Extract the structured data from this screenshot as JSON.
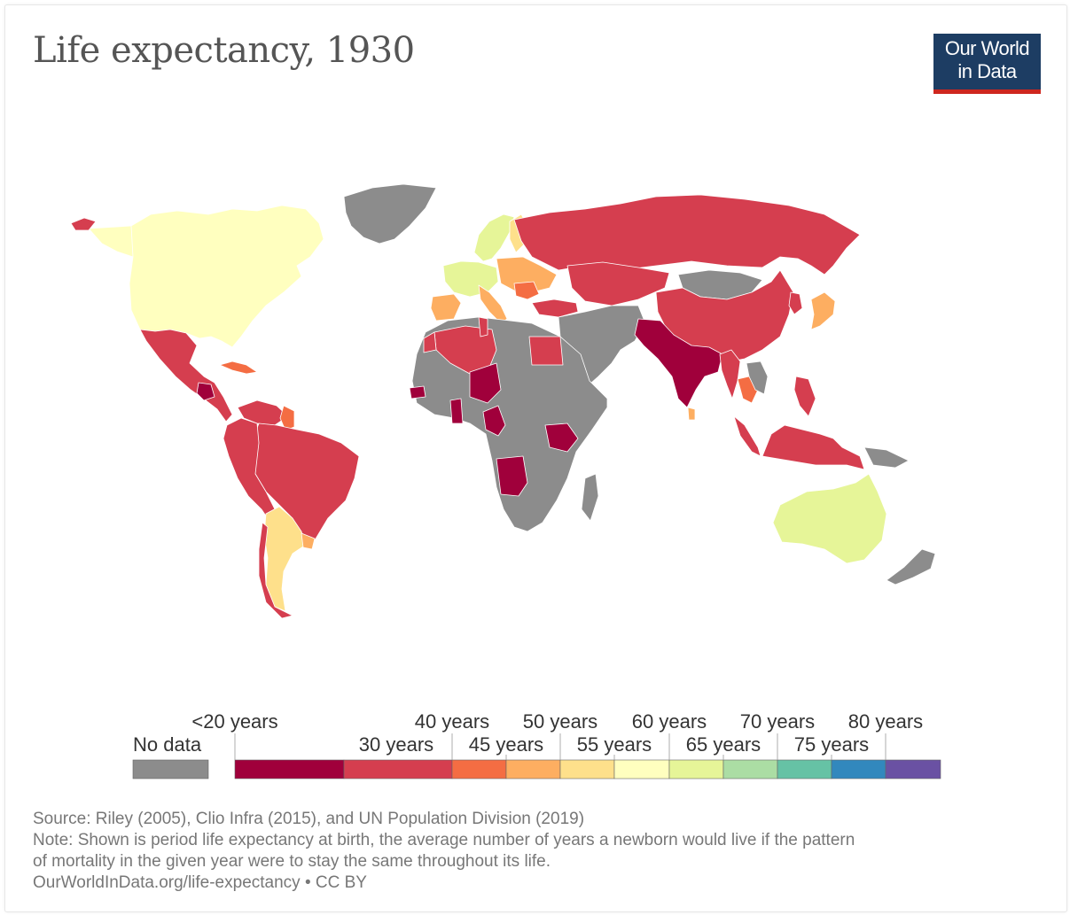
{
  "header": {
    "title": "Life expectancy, 1930",
    "logo_line1": "Our World",
    "logo_line2": "in Data"
  },
  "legend": {
    "no_data_label": "No data",
    "no_data_color": "#8c8c8c",
    "bins": [
      {
        "label": "<20 years",
        "color": "#a0003b"
      },
      {
        "label": "30 years",
        "color": "#d53e4f"
      },
      {
        "label": "40 years",
        "color": "#f46d43"
      },
      {
        "label": "45 years",
        "color": "#fdae61"
      },
      {
        "label": "50 years",
        "color": "#fee08b"
      },
      {
        "label": "55 years",
        "color": "#ffffbf"
      },
      {
        "label": "60 years",
        "color": "#e6f598"
      },
      {
        "label": "65 years",
        "color": "#abdda4"
      },
      {
        "label": "70 years",
        "color": "#66c2a5"
      },
      {
        "label": "75 years",
        "color": "#3288bd"
      },
      {
        "label": "80 years",
        "color": "#6a51a3"
      }
    ]
  },
  "footer": {
    "source": "Source: Riley (2005), Clio Infra (2015), and UN Population Division (2019)",
    "note_line1": "Note: Shown is period life expectancy at birth, the average number of years a newborn would live if the pattern",
    "note_line2": "of mortality in the given year were to stay the same throughout its life.",
    "url_license": "OurWorldInData.org/life-expectancy • CC BY"
  },
  "regions": [
    {
      "name": "North America",
      "color": "#ffffbf"
    },
    {
      "name": "Greenland",
      "color": "#8c8c8c"
    },
    {
      "name": "Mexico and Central America",
      "color": "#d53e4f"
    },
    {
      "name": "Guatemala",
      "color": "#a0003b"
    },
    {
      "name": "Cuba",
      "color": "#f46d43"
    },
    {
      "name": "Venezuela",
      "color": "#d53e4f"
    },
    {
      "name": "Guyana",
      "color": "#f46d43"
    },
    {
      "name": "Brazil",
      "color": "#d53e4f"
    },
    {
      "name": "Western South America",
      "color": "#d53e4f"
    },
    {
      "name": "Argentina",
      "color": "#fee08b"
    },
    {
      "name": "Uruguay",
      "color": "#fdae61"
    },
    {
      "name": "Chile",
      "color": "#d53e4f"
    },
    {
      "name": "Iceland",
      "color": "#d53e4f"
    },
    {
      "name": "Scandinavia",
      "color": "#e6f598"
    },
    {
      "name": "Finland",
      "color": "#fee08b"
    },
    {
      "name": "Western Europe",
      "color": "#e6f598"
    },
    {
      "name": "Iberia",
      "color": "#fdae61"
    },
    {
      "name": "Italy",
      "color": "#fdae61"
    },
    {
      "name": "Eastern Europe",
      "color": "#fdae61"
    },
    {
      "name": "Romania",
      "color": "#f46d43"
    },
    {
      "name": "Russia",
      "color": "#d53e4f"
    },
    {
      "name": "Central Asia",
      "color": "#d53e4f"
    },
    {
      "name": "Mongolia",
      "color": "#8c8c8c"
    },
    {
      "name": "China",
      "color": "#d53e4f"
    },
    {
      "name": "Japan",
      "color": "#fdae61"
    },
    {
      "name": "Korea",
      "color": "#d53e4f"
    },
    {
      "name": "Turkey",
      "color": "#d53e4f"
    },
    {
      "name": "Middle East",
      "color": "#8c8c8c"
    },
    {
      "name": "India",
      "color": "#a0003b"
    },
    {
      "name": "Sri Lanka",
      "color": "#fdae61"
    },
    {
      "name": "Myanmar",
      "color": "#d53e4f"
    },
    {
      "name": "Thailand",
      "color": "#f46d43"
    },
    {
      "name": "Indochina",
      "color": "#8c8c8c"
    },
    {
      "name": "Philippines",
      "color": "#d53e4f"
    },
    {
      "name": "Malaysia",
      "color": "#d53e4f"
    },
    {
      "name": "Indonesia",
      "color": "#d53e4f"
    },
    {
      "name": "New Guinea",
      "color": "#8c8c8c"
    },
    {
      "name": "Australia",
      "color": "#e6f598"
    },
    {
      "name": "New Zealand",
      "color": "#8c8c8c"
    },
    {
      "name": "Africa",
      "color": "#8c8c8c"
    },
    {
      "name": "Algeria",
      "color": "#d53e4f"
    },
    {
      "name": "Morocco",
      "color": "#d53e4f"
    },
    {
      "name": "Tunisia",
      "color": "#d53e4f"
    },
    {
      "name": "Egypt",
      "color": "#d53e4f"
    },
    {
      "name": "Niger",
      "color": "#a0003b"
    },
    {
      "name": "Senegal",
      "color": "#a0003b"
    },
    {
      "name": "Ghana",
      "color": "#a0003b"
    },
    {
      "name": "Cameroon",
      "color": "#a0003b"
    },
    {
      "name": "Kenya",
      "color": "#a0003b"
    },
    {
      "name": "Angola",
      "color": "#a0003b"
    },
    {
      "name": "Madagascar",
      "color": "#8c8c8c"
    }
  ]
}
